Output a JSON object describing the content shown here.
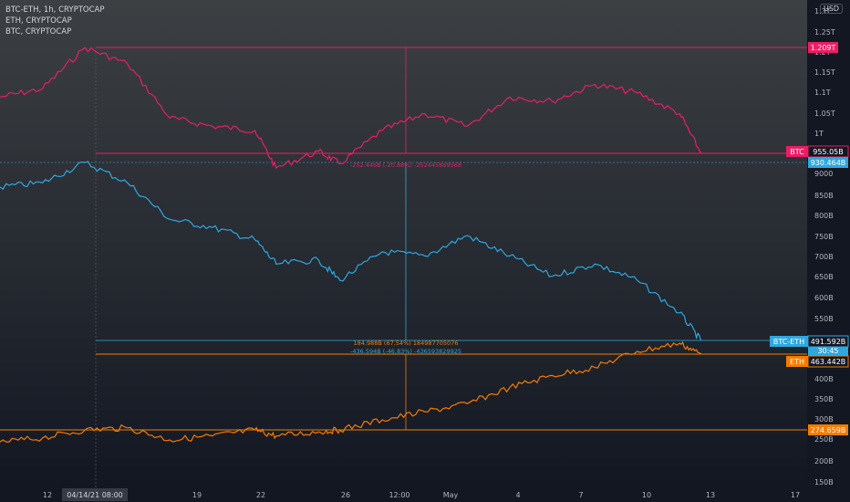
{
  "legend": [
    "BTC-ETH, 1h, CRYPTOCAP",
    "ETH, CRYPTOCAP",
    "BTC, CRYPTOCAP"
  ],
  "currency": "USD",
  "colors": {
    "btc": "#e91e63",
    "eth": "#f57c00",
    "btc_eth": "#2ea8e0",
    "bg_top": "#3c4043",
    "bg_bottom": "#131722"
  },
  "axis": {
    "right_ticks": [
      "1.3T",
      "1.25T",
      "1.2T",
      "1.15T",
      "1.1T",
      "1.05T",
      "1T",
      "9000",
      "850B",
      "800B",
      "750B",
      "700B",
      "650B",
      "600B",
      "550B",
      "500B",
      "450B",
      "400B",
      "350B",
      "300B",
      "250B",
      "200B",
      "150B"
    ],
    "x_ticks": [
      "12",
      "19",
      "22",
      "26",
      "12:00",
      "May",
      "4",
      "7",
      "10",
      "13",
      "17"
    ],
    "x_highlight": "04/14/21  08:00"
  },
  "price_labels": {
    "btc_top": "1.209T",
    "btc_name": "BTC",
    "btc_value": "955.05B",
    "btc_eth_alt": "930.464B",
    "btc_eth_name": "BTC-ETH",
    "btc_eth_value": "491.592B",
    "btc_eth_time": "30:45",
    "eth_name": "ETH",
    "eth_value": "463.442B",
    "eth_low": "274.659B"
  },
  "annotations": {
    "btc_range": "-252.446B (-20.88%) -252445869568",
    "eth_range": "184.988B (67.54%) 184987705076",
    "btc_eth_range": "-436.594B (-46.83%) -436593829925"
  },
  "chart_data": {
    "type": "line",
    "x_range": [
      "2021-04-10",
      "2021-05-18"
    ],
    "series": [
      {
        "name": "BTC",
        "unit": "USD",
        "x": [
          "2021-04-10",
          "2021-04-12",
          "2021-04-14",
          "2021-04-16",
          "2021-04-18",
          "2021-04-20",
          "2021-04-22",
          "2021-04-23",
          "2021-04-25",
          "2021-04-26",
          "2021-04-28",
          "2021-04-30",
          "2021-05-02",
          "2021-05-04",
          "2021-05-06",
          "2021-05-08",
          "2021-05-10",
          "2021-05-12",
          "2021-05-13"
        ],
        "values": [
          1090,
          1110,
          1209,
          1170,
          1040,
          1020,
          1010,
          920,
          960,
          930,
          1010,
          1050,
          1020,
          1090,
          1080,
          1120,
          1100,
          1050,
          955
        ]
      },
      {
        "name": "BTC-ETH",
        "unit": "USD",
        "x": [
          "2021-04-10",
          "2021-04-12",
          "2021-04-14",
          "2021-04-16",
          "2021-04-18",
          "2021-04-20",
          "2021-04-22",
          "2021-04-23",
          "2021-04-25",
          "2021-04-26",
          "2021-04-28",
          "2021-04-30",
          "2021-05-02",
          "2021-05-04",
          "2021-05-06",
          "2021-05-08",
          "2021-05-10",
          "2021-05-12",
          "2021-05-13"
        ],
        "values": [
          870,
          880,
          930,
          880,
          790,
          770,
          740,
          680,
          690,
          640,
          710,
          700,
          750,
          700,
          650,
          680,
          640,
          560,
          492
        ]
      },
      {
        "name": "ETH",
        "unit": "USD",
        "x": [
          "2021-04-10",
          "2021-04-12",
          "2021-04-14",
          "2021-04-16",
          "2021-04-18",
          "2021-04-20",
          "2021-04-22",
          "2021-04-23",
          "2021-04-25",
          "2021-04-26",
          "2021-04-28",
          "2021-04-30",
          "2021-05-02",
          "2021-05-04",
          "2021-05-06",
          "2021-05-08",
          "2021-05-10",
          "2021-05-12",
          "2021-05-13"
        ],
        "values": [
          245,
          255,
          275,
          280,
          250,
          260,
          275,
          260,
          270,
          275,
          300,
          320,
          340,
          380,
          410,
          430,
          470,
          490,
          463
        ]
      }
    ]
  }
}
